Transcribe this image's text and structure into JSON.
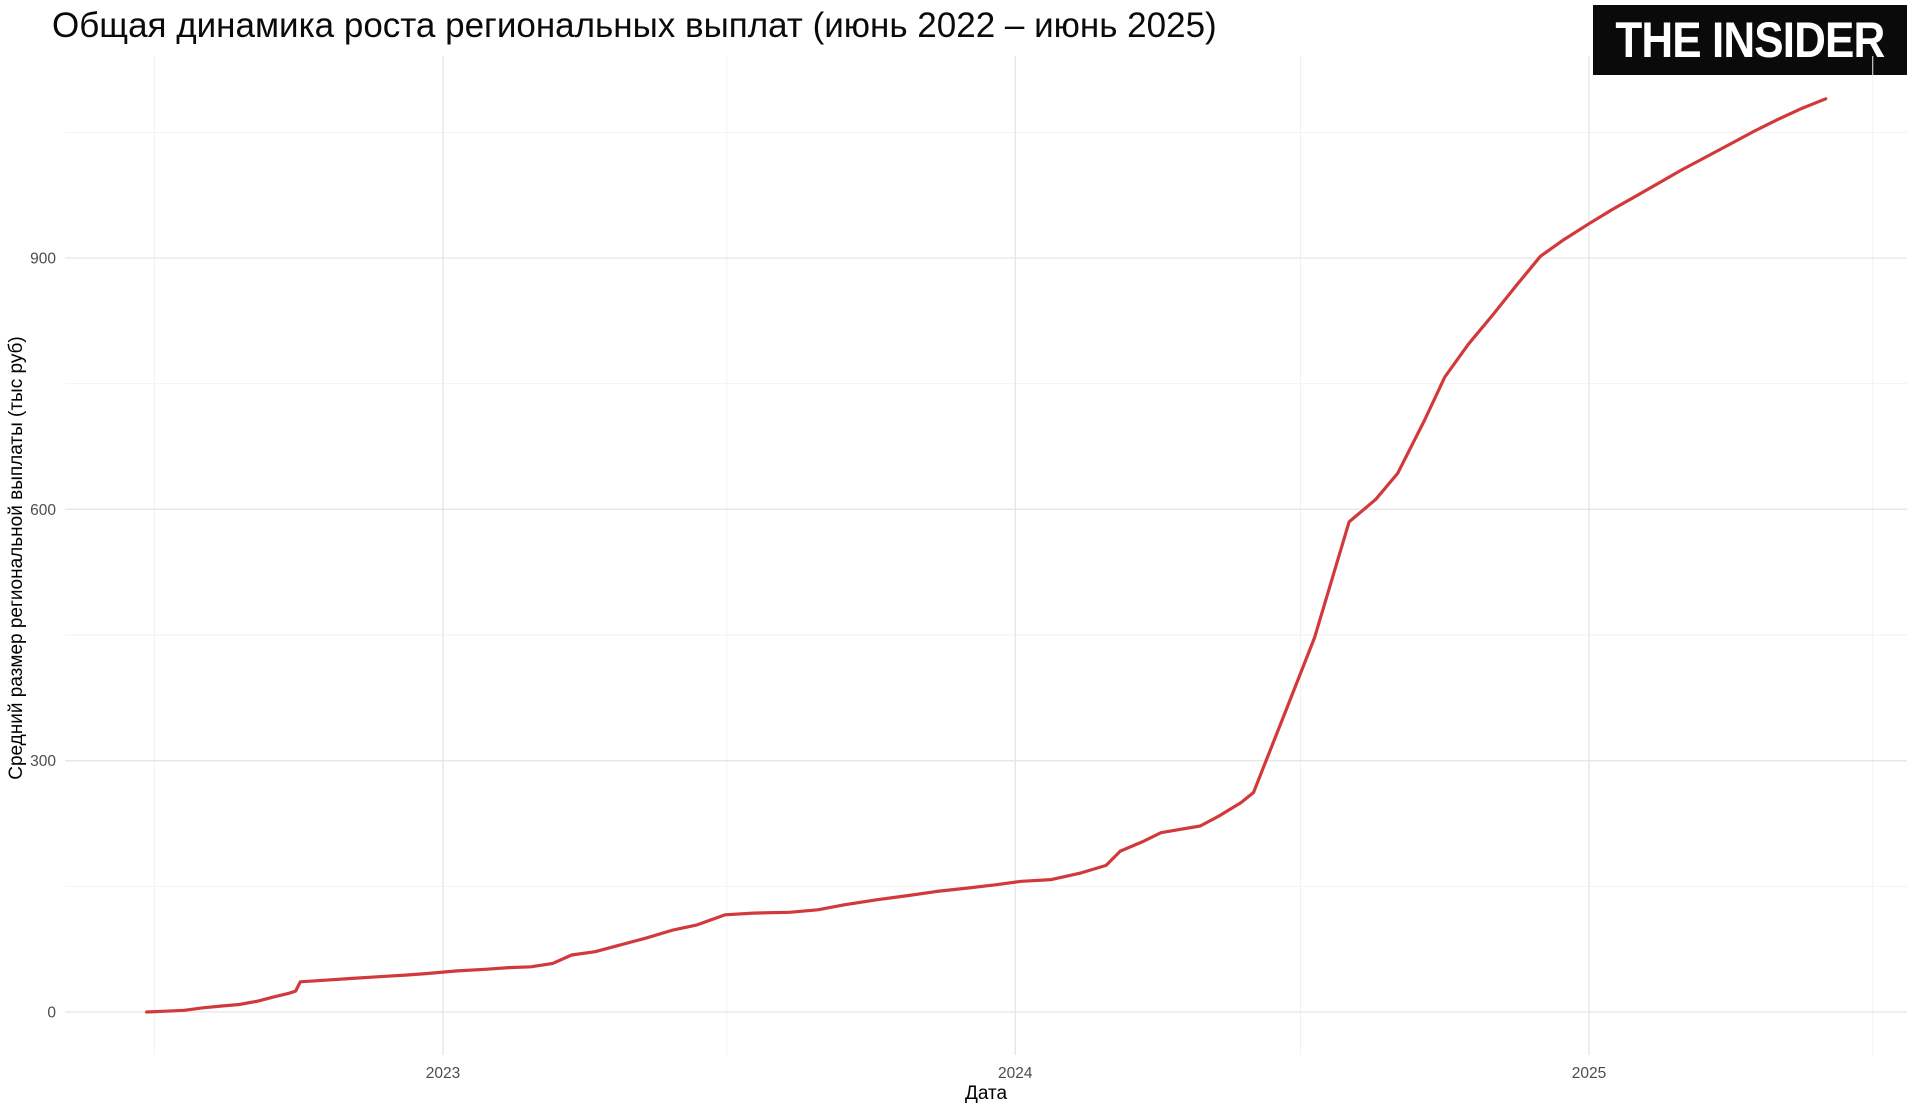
{
  "page": {
    "background": "#ffffff"
  },
  "branding": {
    "logo_text": "THE INSIDER",
    "logo_bg": "#0a0a0a",
    "logo_fg": "#ffffff"
  },
  "chart_data": {
    "type": "line",
    "title": "Общая динамика роста региональных выплат (июнь 2022 – июнь 2025)",
    "xlabel": "Дата",
    "ylabel": "Средний размер региональной выплаты (тыс руб)",
    "legend_position": "none",
    "line_color": "#d2393b",
    "tick_label_color": "#4d4d4d",
    "grid": {
      "major_color": "#e5e5e5",
      "minor_color": "#f2f2f2",
      "background": "#ffffff"
    },
    "ylim": [
      0,
      1140
    ],
    "x_range": [
      "2022-05-05",
      "2025-07-20"
    ],
    "axes": {
      "x_major": [
        {
          "label": "2023",
          "date": "2023-01-01"
        },
        {
          "label": "2024",
          "date": "2024-01-01"
        },
        {
          "label": "2025",
          "date": "2025-01-01"
        }
      ],
      "x_minor_dates": [
        "2022-07-01",
        "2023-07-01",
        "2024-07-01",
        "2025-07-01"
      ],
      "y_major": [
        0,
        300,
        600,
        900
      ],
      "y_minor": [
        150,
        450,
        750,
        1050
      ]
    },
    "series": [
      {
        "name": "Средний размер региональной выплаты (тыс руб)",
        "color": "#d2393b",
        "points": [
          [
            "2022-06-26",
            0
          ],
          [
            "2022-07-08",
            1
          ],
          [
            "2022-07-20",
            2
          ],
          [
            "2022-08-01",
            5
          ],
          [
            "2022-08-12",
            7
          ],
          [
            "2022-08-24",
            9
          ],
          [
            "2022-09-05",
            13
          ],
          [
            "2022-09-15",
            18
          ],
          [
            "2022-09-24",
            22
          ],
          [
            "2022-09-29",
            25
          ],
          [
            "2022-10-02",
            36
          ],
          [
            "2022-10-18",
            38
          ],
          [
            "2022-11-03",
            40
          ],
          [
            "2022-11-20",
            42
          ],
          [
            "2022-12-08",
            44
          ],
          [
            "2022-12-22",
            46
          ],
          [
            "2023-01-10",
            49
          ],
          [
            "2023-01-28",
            51
          ],
          [
            "2023-02-12",
            53
          ],
          [
            "2023-02-26",
            54
          ],
          [
            "2023-03-12",
            58
          ],
          [
            "2023-03-24",
            68
          ],
          [
            "2023-04-08",
            72
          ],
          [
            "2023-04-22",
            79
          ],
          [
            "2023-05-10",
            88
          ],
          [
            "2023-05-28",
            98
          ],
          [
            "2023-06-12",
            104
          ],
          [
            "2023-06-30",
            116
          ],
          [
            "2023-07-18",
            118
          ],
          [
            "2023-08-10",
            119
          ],
          [
            "2023-08-28",
            122
          ],
          [
            "2023-09-14",
            128
          ],
          [
            "2023-10-05",
            134
          ],
          [
            "2023-10-25",
            139
          ],
          [
            "2023-11-12",
            144
          ],
          [
            "2023-12-02",
            148
          ],
          [
            "2023-12-20",
            152
          ],
          [
            "2024-01-05",
            156
          ],
          [
            "2024-01-24",
            158
          ],
          [
            "2024-02-12",
            166
          ],
          [
            "2024-02-28",
            175
          ],
          [
            "2024-03-08",
            192
          ],
          [
            "2024-03-22",
            203
          ],
          [
            "2024-04-03",
            214
          ],
          [
            "2024-04-15",
            218
          ],
          [
            "2024-04-28",
            222
          ],
          [
            "2024-05-10",
            234
          ],
          [
            "2024-05-24",
            250
          ],
          [
            "2024-06-01",
            262
          ],
          [
            "2024-06-20",
            352
          ],
          [
            "2024-07-10",
            447
          ],
          [
            "2024-08-01",
            585
          ],
          [
            "2024-08-18",
            612
          ],
          [
            "2024-09-01",
            643
          ],
          [
            "2024-09-18",
            706
          ],
          [
            "2024-10-01",
            758
          ],
          [
            "2024-10-16",
            797
          ],
          [
            "2024-11-01",
            833
          ],
          [
            "2024-11-16",
            868
          ],
          [
            "2024-12-01",
            902
          ],
          [
            "2024-12-16",
            922
          ],
          [
            "2025-01-01",
            941
          ],
          [
            "2025-01-16",
            958
          ],
          [
            "2025-02-01",
            975
          ],
          [
            "2025-02-15",
            990
          ],
          [
            "2025-03-01",
            1005
          ],
          [
            "2025-03-16",
            1020
          ],
          [
            "2025-04-01",
            1036
          ],
          [
            "2025-04-16",
            1051
          ],
          [
            "2025-05-01",
            1065
          ],
          [
            "2025-05-16",
            1078
          ],
          [
            "2025-06-01",
            1090
          ]
        ]
      }
    ]
  }
}
